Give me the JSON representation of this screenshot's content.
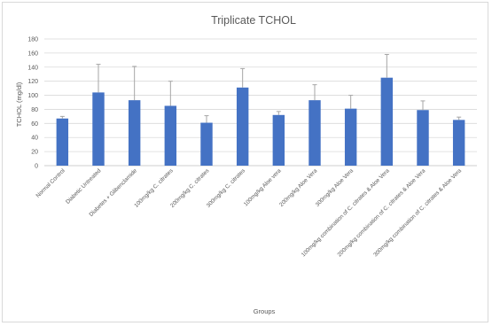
{
  "chart_data": {
    "type": "bar",
    "title": "Triplicate TCHOL",
    "xlabel": "Groups",
    "ylabel": "TCHOL (mg/dl)",
    "ylim": [
      0,
      180
    ],
    "yticks": [
      0,
      20,
      40,
      60,
      80,
      100,
      120,
      140,
      160,
      180
    ],
    "grid": true,
    "bar_color": "#4472C4",
    "categories": [
      "Normal Control",
      "Diabetic  Untreated",
      "Diabetes + Glibenclamide",
      "100mg/kg C. citrates",
      "200mg/kg C. citrates",
      "300mg/kg C. citrates",
      "100mg/kg Aloe vera",
      "200mg/kg Aloe Vera",
      "300mg/kg Aloe Vera",
      "100mg/kg combination of C. citrates & Aloe Vera",
      "200mg/kg combination of C. citrates & Aloe Vera",
      "300mg/kg combination of C. citrates & Aloe Vera"
    ],
    "values": [
      67,
      104,
      93,
      85,
      61,
      111,
      72,
      93,
      81,
      125,
      79,
      65
    ],
    "error": [
      3,
      40,
      48,
      35,
      10,
      27,
      5,
      22,
      19,
      33,
      13,
      4
    ]
  }
}
